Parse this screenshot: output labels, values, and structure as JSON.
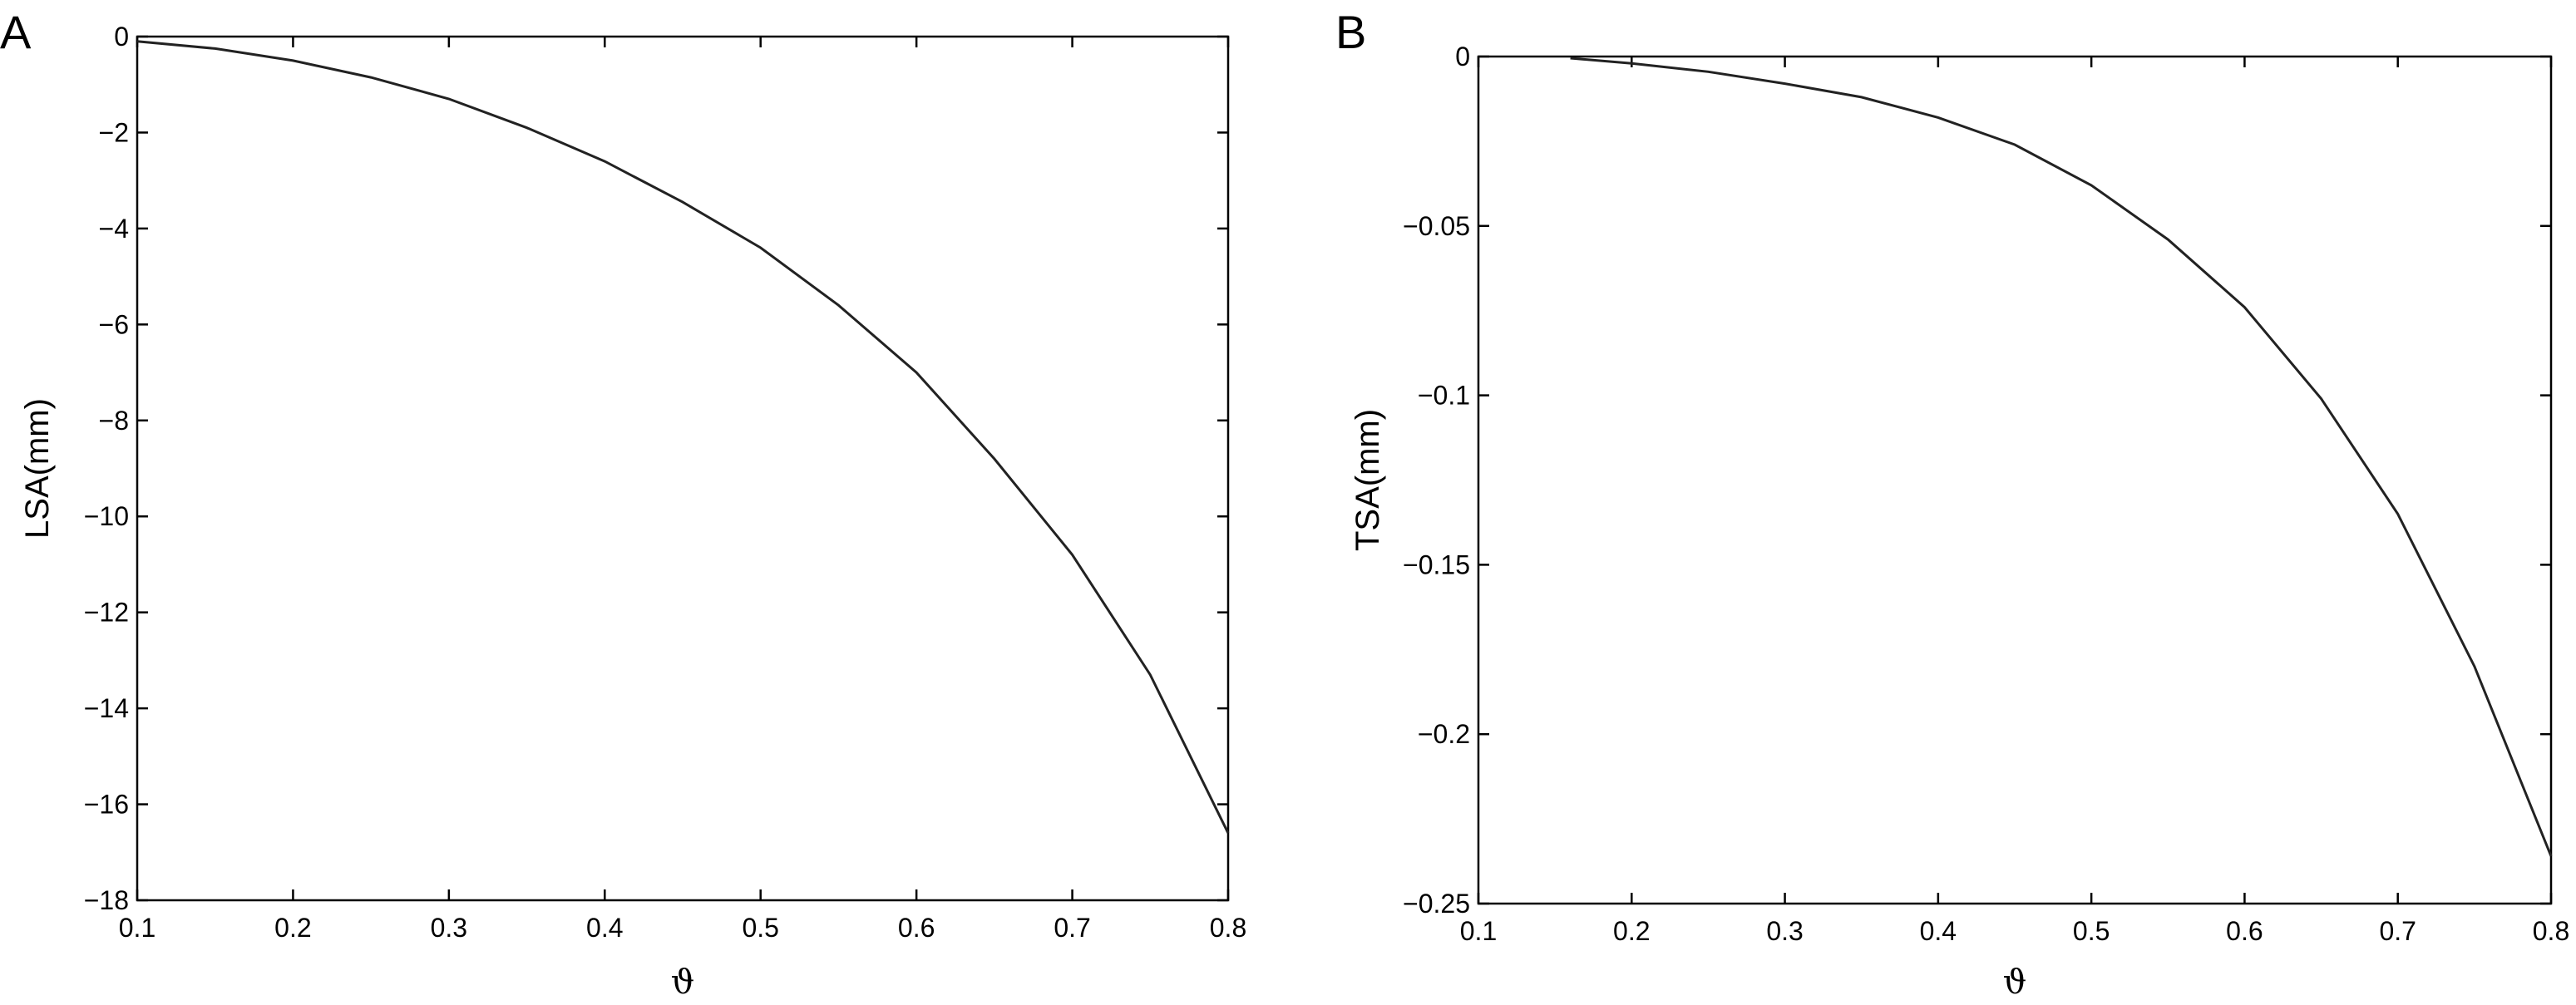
{
  "chart_data": [
    {
      "type": "line",
      "panel_label": "A",
      "xlabel": "ϑ",
      "ylabel": "LSA(mm)",
      "xlim": [
        0.1,
        0.8
      ],
      "ylim": [
        -18,
        0
      ],
      "xticks": [
        0.1,
        0.2,
        0.3,
        0.4,
        0.5,
        0.6,
        0.7,
        0.8
      ],
      "xtick_labels": [
        "0.1",
        "0.2",
        "0.3",
        "0.4",
        "0.5",
        "0.6",
        "0.7",
        "0.8"
      ],
      "yticks": [
        0,
        -2,
        -4,
        -6,
        -8,
        -10,
        -12,
        -14,
        -16,
        -18
      ],
      "ytick_labels": [
        "0",
        "−2",
        "−4",
        "−6",
        "−8",
        "−10",
        "−12",
        "−14",
        "−16",
        "−18"
      ],
      "grid": false,
      "series": [
        {
          "x": [
            0.1,
            0.15,
            0.2,
            0.25,
            0.3,
            0.35,
            0.4,
            0.45,
            0.5,
            0.55,
            0.6,
            0.65,
            0.7,
            0.75,
            0.8
          ],
          "y": [
            -0.1,
            -0.25,
            -0.5,
            -0.85,
            -1.3,
            -1.9,
            -2.6,
            -3.45,
            -4.4,
            -5.6,
            -7.0,
            -8.8,
            -10.8,
            -13.3,
            -16.6
          ],
          "color": "#222222"
        }
      ]
    },
    {
      "type": "line",
      "panel_label": "B",
      "xlabel": "ϑ",
      "ylabel": "TSA(mm)",
      "xlim": [
        0.1,
        0.8
      ],
      "ylim": [
        -0.25,
        0
      ],
      "xticks": [
        0.1,
        0.2,
        0.3,
        0.4,
        0.5,
        0.6,
        0.7,
        0.8
      ],
      "xtick_labels": [
        "0.1",
        "0.2",
        "0.3",
        "0.4",
        "0.5",
        "0.6",
        "0.7",
        "0.8"
      ],
      "yticks": [
        0,
        -0.05,
        -0.1,
        -0.15,
        -0.2,
        -0.25
      ],
      "ytick_labels": [
        "0",
        "−0.05",
        "−0.1",
        "−0.15",
        "−0.2",
        "−0.25"
      ],
      "grid": false,
      "series": [
        {
          "x": [
            0.16,
            0.2,
            0.25,
            0.3,
            0.35,
            0.4,
            0.45,
            0.5,
            0.55,
            0.6,
            0.65,
            0.7,
            0.75,
            0.8
          ],
          "y": [
            -0.0005,
            -0.002,
            -0.0045,
            -0.008,
            -0.012,
            -0.018,
            -0.026,
            -0.038,
            -0.054,
            -0.074,
            -0.101,
            -0.135,
            -0.18,
            -0.236
          ],
          "color": "#222222"
        }
      ]
    }
  ]
}
